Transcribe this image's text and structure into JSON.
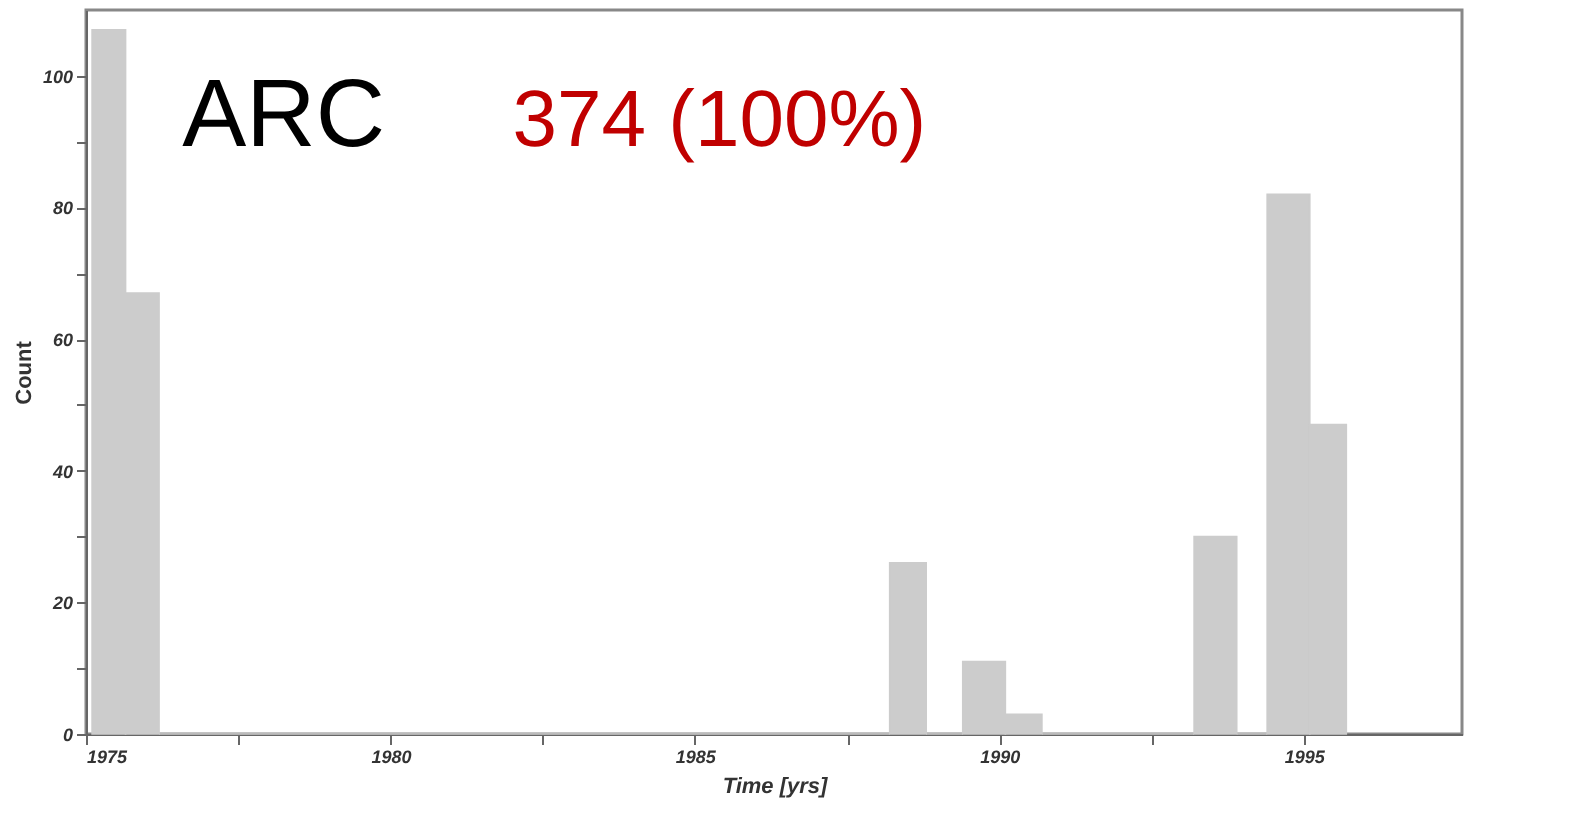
{
  "chart_data": {
    "type": "histogram",
    "bins": [
      1975.1,
      1975.65,
      1976.2,
      1988.2,
      1988.8,
      1989.4,
      1990.1,
      1990.7,
      1993.2,
      1993.9,
      1994.4,
      1995.1,
      1995.7
    ],
    "values": [
      107,
      67,
      0,
      26,
      0,
      11,
      3,
      0,
      30,
      0,
      82,
      47
    ],
    "color": "#cccccc",
    "xlabel": "Time [yrs]",
    "ylabel": "Count",
    "xlim": [
      1975,
      1997.6
    ],
    "ylim": [
      0,
      110
    ],
    "xticks": [
      1975,
      {
        "value": 1977.5,
        "label": null
      },
      1980,
      {
        "value": 1982.5,
        "label": null
      },
      1985,
      {
        "value": 1987.5,
        "label": null
      },
      1990,
      {
        "value": 1992.5,
        "label": null
      },
      1995
    ],
    "yticks": [
      0,
      {
        "value": 10,
        "label": null
      },
      20,
      {
        "value": 30,
        "label": null
      },
      40,
      {
        "value": 50,
        "label": null
      },
      60,
      {
        "value": 70,
        "label": null
      },
      80,
      {
        "value": 90,
        "label": null
      },
      100
    ],
    "annotations": [
      "ARC",
      "374 (100%)"
    ],
    "grid": false
  }
}
